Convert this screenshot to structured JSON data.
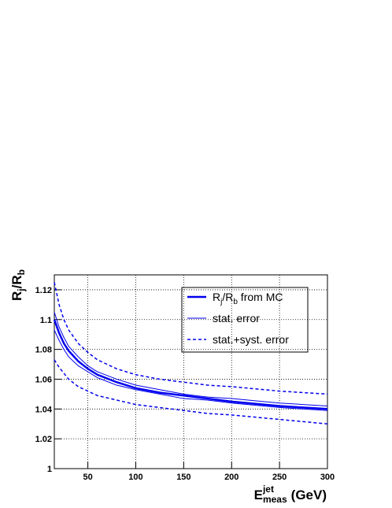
{
  "chart_data": {
    "type": "line",
    "x_label": {
      "base": "E",
      "sub": "meas",
      "sup": "jet",
      "unit": "(GeV)"
    },
    "y_label": [
      "R",
      "j",
      "/R",
      "b"
    ],
    "x": [
      15,
      20,
      25,
      30,
      40,
      50,
      60,
      80,
      100,
      125,
      150,
      175,
      200,
      250,
      300
    ],
    "series": [
      {
        "name": [
          "R",
          "j",
          "/R",
          "b",
          " from MC"
        ],
        "color": "#0000ee",
        "width": 2.5,
        "dash": false,
        "values": [
          1.1,
          1.091,
          1.084,
          1.079,
          1.072,
          1.067,
          1.063,
          1.058,
          1.054,
          1.051,
          1.049,
          1.047,
          1.045,
          1.042,
          1.04
        ]
      },
      {
        "name": [
          "stat. error"
        ],
        "color": "#0000ee",
        "width": 1,
        "dash": false,
        "values": [
          1.105,
          1.095,
          1.088,
          1.082,
          1.075,
          1.069,
          1.065,
          1.06,
          1.056,
          1.053,
          1.05,
          1.048,
          1.047,
          1.044,
          1.042
        ]
      },
      {
        "color": "#0000ee",
        "width": 1,
        "dash": false,
        "values": [
          1.093,
          1.086,
          1.08,
          1.075,
          1.069,
          1.065,
          1.061,
          1.056,
          1.053,
          1.05,
          1.047,
          1.046,
          1.044,
          1.041,
          1.039
        ]
      },
      {
        "name": [
          "stat.+syst. error"
        ],
        "color": "#0000ee",
        "width": 1.5,
        "dash": true,
        "values": [
          1.125,
          1.11,
          1.1,
          1.093,
          1.084,
          1.078,
          1.073,
          1.067,
          1.063,
          1.06,
          1.058,
          1.056,
          1.055,
          1.052,
          1.05
        ]
      },
      {
        "color": "#0000ee",
        "width": 1.5,
        "dash": true,
        "values": [
          1.073,
          1.068,
          1.064,
          1.06,
          1.055,
          1.052,
          1.049,
          1.046,
          1.043,
          1.041,
          1.039,
          1.037,
          1.036,
          1.033,
          1.03
        ]
      }
    ],
    "xlim": [
      15,
      300
    ],
    "ylim": [
      1,
      1.13
    ],
    "xticks": [
      50,
      100,
      150,
      200,
      250,
      300
    ],
    "yticks": [
      1,
      1.02,
      1.04,
      1.06,
      1.08,
      1.1,
      1.12
    ],
    "grid": true
  }
}
